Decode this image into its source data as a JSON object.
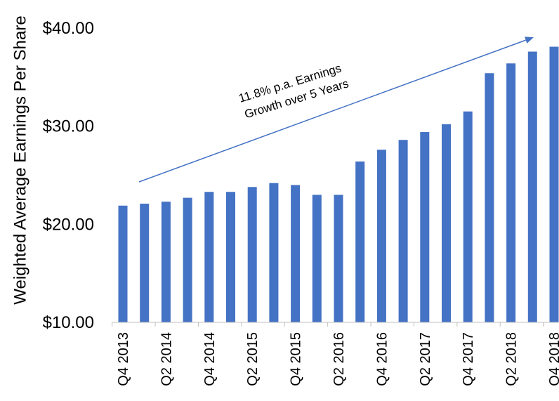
{
  "chart_data": {
    "type": "bar",
    "ylabel": "Weighted Average Earnings Per Share",
    "ylim": [
      10,
      40
    ],
    "yticks": [
      "$10.00",
      "$20.00",
      "$30.00",
      "$40.00"
    ],
    "ytick_values": [
      10,
      20,
      30,
      40
    ],
    "categories": [
      "Q4 2013",
      "Q1 2014",
      "Q2 2014",
      "Q3 2014",
      "Q4 2014",
      "Q1 2015",
      "Q2 2015",
      "Q3 2015",
      "Q4 2015",
      "Q1 2016",
      "Q2 2016",
      "Q3 2016",
      "Q4 2016",
      "Q1 2017",
      "Q2 2017",
      "Q3 2017",
      "Q4 2017",
      "Q1 2018",
      "Q2 2018",
      "Q3 2018",
      "Q4 2018"
    ],
    "xtick_labels": [
      "Q4 2013",
      "Q2 2014",
      "Q4 2014",
      "Q2 2015",
      "Q4 2015",
      "Q2 2016",
      "Q4 2016",
      "Q2 2017",
      "Q4 2017",
      "Q2 2018",
      "Q4 2018"
    ],
    "values": [
      21.9,
      22.1,
      22.3,
      22.7,
      23.3,
      23.3,
      23.8,
      24.2,
      24.0,
      23.0,
      23.0,
      26.4,
      27.6,
      28.6,
      29.4,
      30.2,
      31.5,
      35.4,
      36.4,
      37.6,
      38.1
    ],
    "bar_color": "#4472C4",
    "annotation": {
      "lines": [
        "11.8% p.a. Earnings",
        "Growth over 5 Years"
      ],
      "arrow_color": "#4472C4"
    },
    "grid": false
  }
}
